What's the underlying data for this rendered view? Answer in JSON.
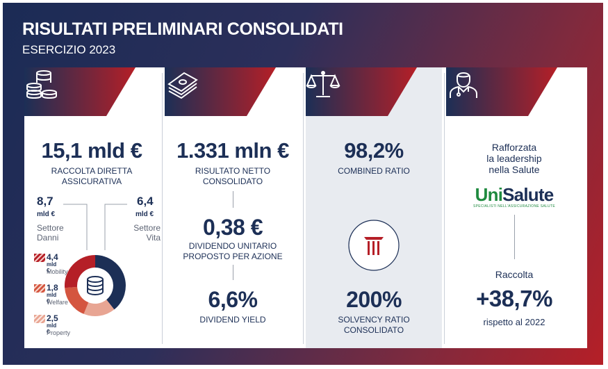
{
  "header": {
    "title": "RISULTATI PRELIMINARI CONSOLIDATI",
    "subtitle": "ESERCIZIO 2023"
  },
  "colors": {
    "navy": "#1c2f56",
    "red": "#b51f27",
    "mid_red": "#d4553f",
    "light_red": "#e8a593",
    "green": "#1f8a3f"
  },
  "col1": {
    "icon": "coins-stack-icon",
    "value": "15,1 mld €",
    "label": "RACCOLTA DIRETTA ASSICURATIVA",
    "left_value": "8,7",
    "left_unit": "mld €",
    "left_label": "Settore Danni",
    "right_value": "6,4",
    "right_unit": "mld €",
    "right_label": "Settore Vita",
    "center_icon": "database-icon",
    "legend": [
      {
        "value": "4,4",
        "unit": "mld €",
        "name": "Mobility"
      },
      {
        "value": "1,8",
        "unit": "mld €",
        "name": "Welfare"
      },
      {
        "value": "2,5",
        "unit": "mld €",
        "name": "Property"
      }
    ]
  },
  "col2": {
    "icon": "banknotes-icon",
    "value1": "1.331 mln €",
    "label1": "RISULTATO NETTO CONSOLIDATO",
    "value2": "0,38 €",
    "label2": "DIVIDENDO UNITARIO PROPOSTO PER AZIONE",
    "value3": "6,6%",
    "label3": "DIVIDEND YIELD"
  },
  "col3": {
    "icon": "balance-scale-icon",
    "value1": "98,2%",
    "label1": "COMBINED RATIO",
    "center_icon": "pillar-icon",
    "value2": "200%",
    "label2": "SOLVENCY RATIO CONSOLIDATO"
  },
  "col4": {
    "icon": "doctor-icon",
    "text_line1": "Rafforzata",
    "text_line2": "la leadership",
    "text_line3": "nella Salute",
    "logo_part1": "Uni",
    "logo_part2": "Salute",
    "logo_tagline": "SPECIALISTI NELL'ASSICURAZIONE SALUTE",
    "raccolta_label": "Raccolta",
    "raccolta_value": "+38,7%",
    "raccolta_note": "rispetto al 2022"
  }
}
